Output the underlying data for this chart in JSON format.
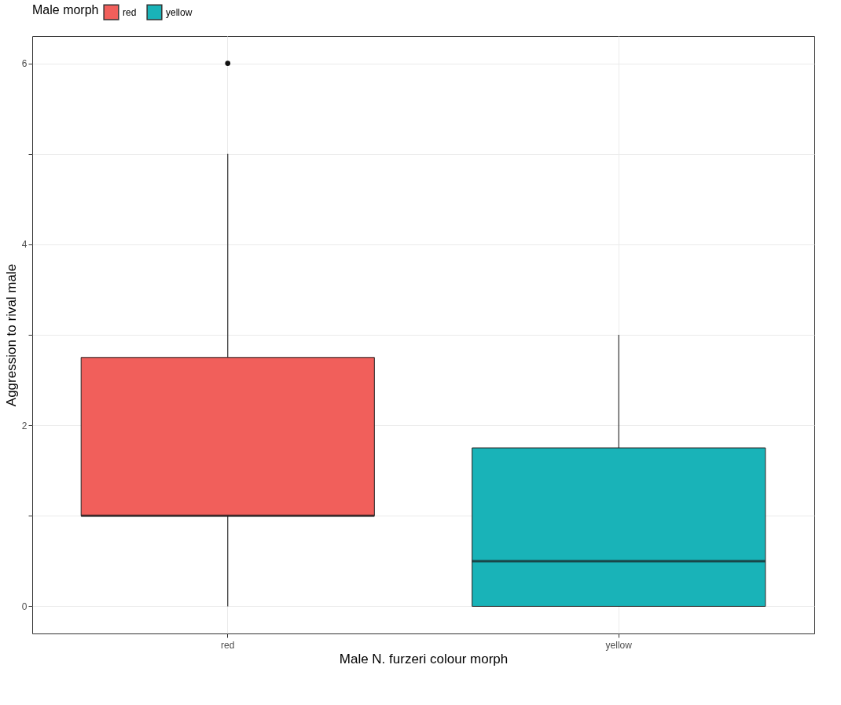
{
  "chart_data": {
    "type": "box",
    "xlabel": "Male N. furzeri colour morph",
    "ylabel": "Aggression to rival male",
    "legend_title": "Male morph",
    "legend": "top",
    "categories": [
      "red",
      "yellow"
    ],
    "series": [
      {
        "name": "red",
        "color": "#f15f5b",
        "boxes": [
          {
            "low": 0,
            "q1": 1,
            "median": 1,
            "q3": 2.75,
            "high": 5,
            "outliers": [
              6
            ]
          },
          null
        ]
      },
      {
        "name": "yellow",
        "color": "#19b3b8",
        "boxes": [
          null,
          {
            "low": 0,
            "q1": 0,
            "median": 0.5,
            "q3": 1.75,
            "high": 3
          }
        ]
      }
    ],
    "ylim": [
      -0.3,
      6.3
    ],
    "yticks": [
      0,
      {
        "value": 1,
        "label": null
      },
      2,
      {
        "value": 3,
        "label": null
      },
      4,
      {
        "value": 5,
        "label": null
      },
      6
    ],
    "grid": true
  }
}
